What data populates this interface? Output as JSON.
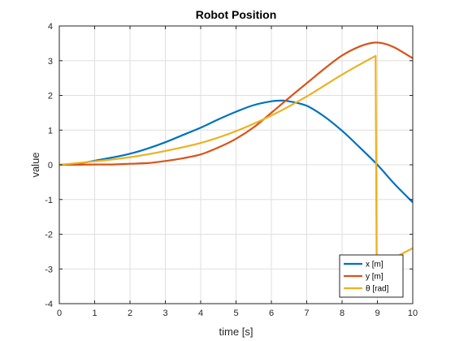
{
  "chart_data": {
    "type": "line",
    "title": "Robot Position",
    "xlabel": "time [s]",
    "ylabel": "value",
    "xlim": [
      0,
      10
    ],
    "ylim": [
      -4,
      4
    ],
    "xticks": [
      0,
      1,
      2,
      3,
      4,
      5,
      6,
      7,
      8,
      9,
      10
    ],
    "yticks": [
      -4,
      -3,
      -2,
      -1,
      0,
      1,
      2,
      3,
      4
    ],
    "grid": true,
    "legend_position": "bottom-right",
    "series": [
      {
        "name": "x [m]",
        "color": "#0072BD",
        "x": [
          0,
          0.5,
          1,
          1.5,
          2,
          2.5,
          3,
          3.5,
          4,
          4.5,
          5,
          5.5,
          6,
          6.3,
          6.5,
          7,
          7.5,
          8,
          8.5,
          9,
          9.5,
          10
        ],
        "y": [
          0,
          0.03,
          0.12,
          0.21,
          0.32,
          0.47,
          0.65,
          0.86,
          1.07,
          1.31,
          1.53,
          1.72,
          1.83,
          1.85,
          1.83,
          1.7,
          1.39,
          0.98,
          0.5,
          0.0,
          -0.57,
          -1.08
        ]
      },
      {
        "name": "y [m]",
        "color": "#D95319",
        "x": [
          0,
          0.5,
          1,
          1.5,
          2,
          2.5,
          3,
          3.5,
          4,
          4.5,
          5,
          5.5,
          6,
          6.5,
          7,
          7.5,
          8,
          8.5,
          8.9,
          9.2,
          9.5,
          10
        ],
        "y": [
          0,
          0.0,
          0.01,
          0.01,
          0.03,
          0.05,
          0.11,
          0.19,
          0.3,
          0.5,
          0.75,
          1.08,
          1.5,
          1.93,
          2.35,
          2.77,
          3.15,
          3.41,
          3.52,
          3.49,
          3.37,
          3.07
        ]
      },
      {
        "name": "θ [rad]",
        "color": "#EDB120",
        "x": [
          0,
          1,
          2,
          3,
          4,
          5,
          6,
          7,
          8,
          8.95,
          8.98,
          9.1,
          10
        ],
        "y": [
          0,
          0.1,
          0.22,
          0.4,
          0.63,
          0.97,
          1.42,
          1.97,
          2.6,
          3.14,
          -3.14,
          -2.9,
          -2.4
        ]
      }
    ]
  }
}
